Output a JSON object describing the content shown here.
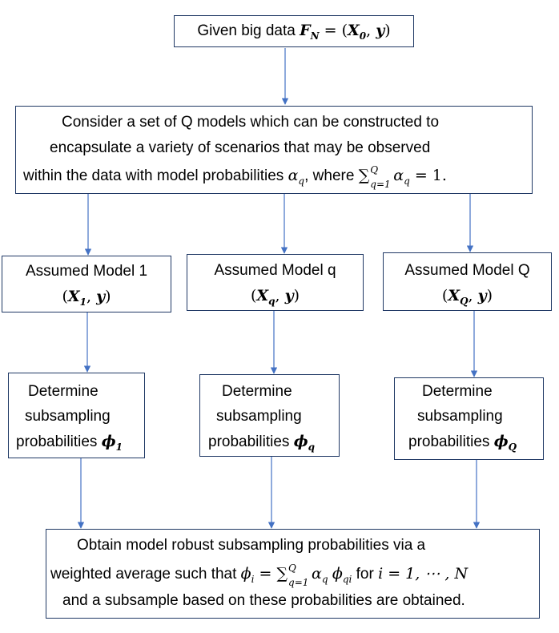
{
  "colors": {
    "arrow": "#4472c4",
    "border": "#1f3864"
  },
  "top_box": {
    "text": "Given big data",
    "math": {
      "F": "F",
      "F_sub": "N",
      "eq": " = (",
      "X": "X",
      "X_sub": "0",
      "comma": ", ",
      "y": "y",
      "close": ")"
    }
  },
  "consider_box": {
    "line1": "Consider a set of Q models which can be constructed to",
    "line2": "encapsulate a variety of scenarios that may be observed",
    "line3_pre": "within the data with model probabilities",
    "alpha": "α",
    "alpha_sub": "q",
    "line3_mid": ", where",
    "sum": "∑",
    "sum_sub": "q=1",
    "sum_sup": "Q",
    "line3_end": " = 1."
  },
  "models": [
    {
      "label": "Assumed Model 1",
      "X": "X",
      "X_sub": "1",
      "y": "y",
      "det1": "Determine",
      "det2": "subsampling",
      "det3": "probabilities",
      "phi": "ϕ",
      "phi_sub": "1"
    },
    {
      "label": "Assumed Model q",
      "X": "X",
      "X_sub": "q",
      "y": "y",
      "det1": "Determine",
      "det2": "subsampling",
      "det3": "probabilities",
      "phi": "ϕ",
      "phi_sub": "q"
    },
    {
      "label": "Assumed Model Q",
      "X": "X",
      "X_sub": "Q",
      "y": "y",
      "det1": "Determine",
      "det2": "subsampling",
      "det3": "probabilities",
      "phi": "ϕ",
      "phi_sub": "Q"
    }
  ],
  "bottom_box": {
    "line1": "Obtain model robust subsampling probabilities via a",
    "line2_pre": "weighted average such that",
    "phi_i": "ϕ",
    "i": "i",
    "eq": " = ",
    "sum": "∑",
    "sum_sub": "q=1",
    "sum_sup": "Q",
    "alpha": "α",
    "alpha_sub": "q",
    "phi": "ϕ",
    "phi_sub": "qi",
    "for_text": " for ",
    "range": "i = 1, ⋯ , N",
    "line3": "and a subsample based on these probabilities are obtained."
  }
}
